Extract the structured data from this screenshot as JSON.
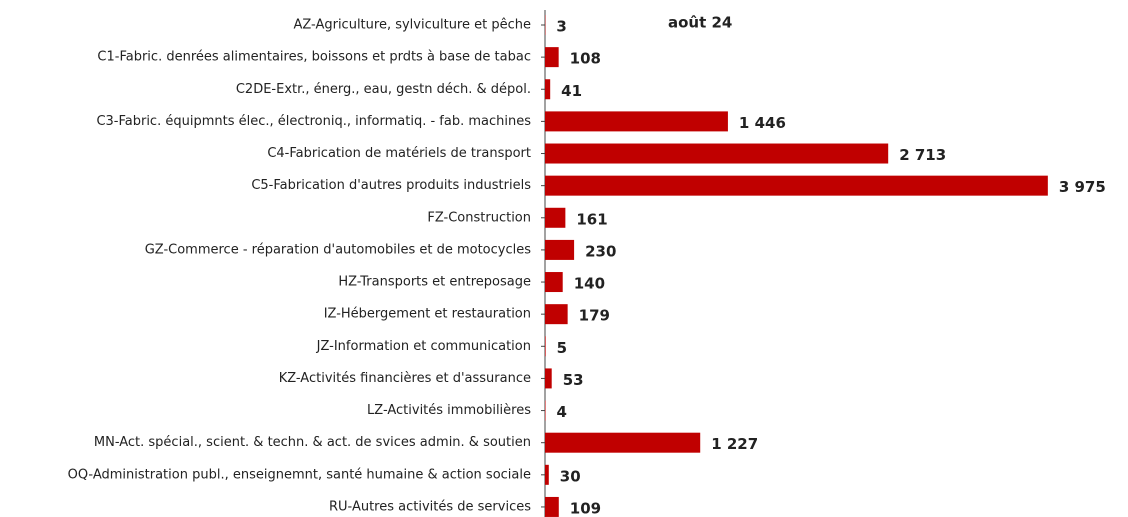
{
  "chart_data": {
    "type": "barh",
    "title": "août 24",
    "categories": [
      "AZ-Agriculture, sylviculture et pêche",
      "C1-Fabric. denrées alimentaires, boissons et  prdts à base de tabac",
      "C2DE-Extr., énerg., eau, gestn déch. & dépol.",
      "C3-Fabric. équipmnts élec., électroniq., informatiq. - fab. machines",
      "C4-Fabrication de matériels de transport",
      "C5-Fabrication d'autres produits industriels",
      "FZ-Construction",
      "GZ-Commerce - réparation d'automobiles et de motocycles",
      "HZ-Transports et entreposage",
      "IZ-Hébergement et restauration",
      "JZ-Information et communication",
      "KZ-Activités financières et d'assurance",
      "LZ-Activités immobilières",
      "MN-Act. spécial., scient. & techn. & act. de svices admin. & soutien",
      "OQ-Administration publ., enseignemnt, santé humaine & action sociale",
      "RU-Autres activités de services"
    ],
    "values": [
      3,
      108,
      41,
      1446,
      2713,
      3975,
      161,
      230,
      140,
      179,
      5,
      53,
      4,
      1227,
      30,
      109
    ],
    "value_labels": [
      "3",
      "108",
      "41",
      "1 446",
      "2 713",
      "3 975",
      "161",
      "230",
      "140",
      "179",
      "5",
      "53",
      "4",
      "1 227",
      "30",
      "109"
    ],
    "color": "#c00000",
    "xlim": [
      0,
      4000
    ]
  }
}
